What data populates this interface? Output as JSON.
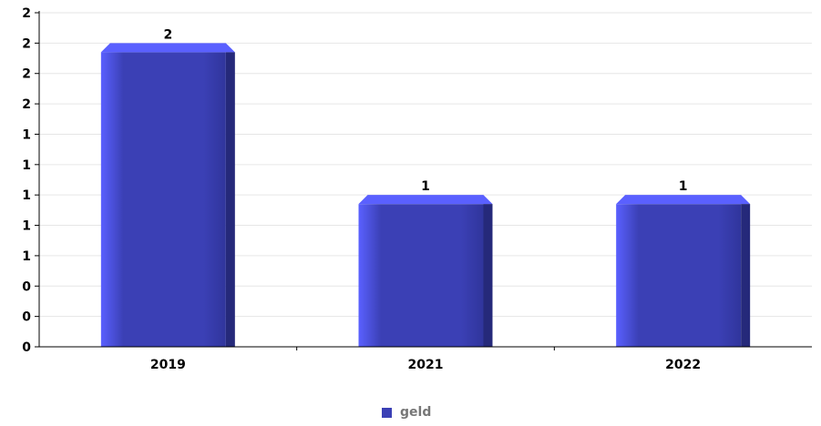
{
  "chart_data": {
    "type": "bar",
    "categories": [
      "2019",
      "2021",
      "2022"
    ],
    "series": [
      {
        "name": "geld",
        "values": [
          2,
          1,
          1
        ]
      }
    ],
    "value_labels": [
      "2",
      "1",
      "1"
    ],
    "y_tick_labels": [
      "0",
      "0",
      "0",
      "1",
      "1",
      "1",
      "1",
      "1",
      "2",
      "2",
      "2",
      "2"
    ],
    "ylim": [
      0,
      2.2
    ],
    "y_tick_step": 0.2,
    "grid": true,
    "legend_position": "bottom-center",
    "colors": {
      "bar": "#3b40b5",
      "bar_light": "#5a60ff",
      "bar_dark": "#25297a",
      "grid": "#e6e6e6",
      "axis": "#000000"
    }
  }
}
